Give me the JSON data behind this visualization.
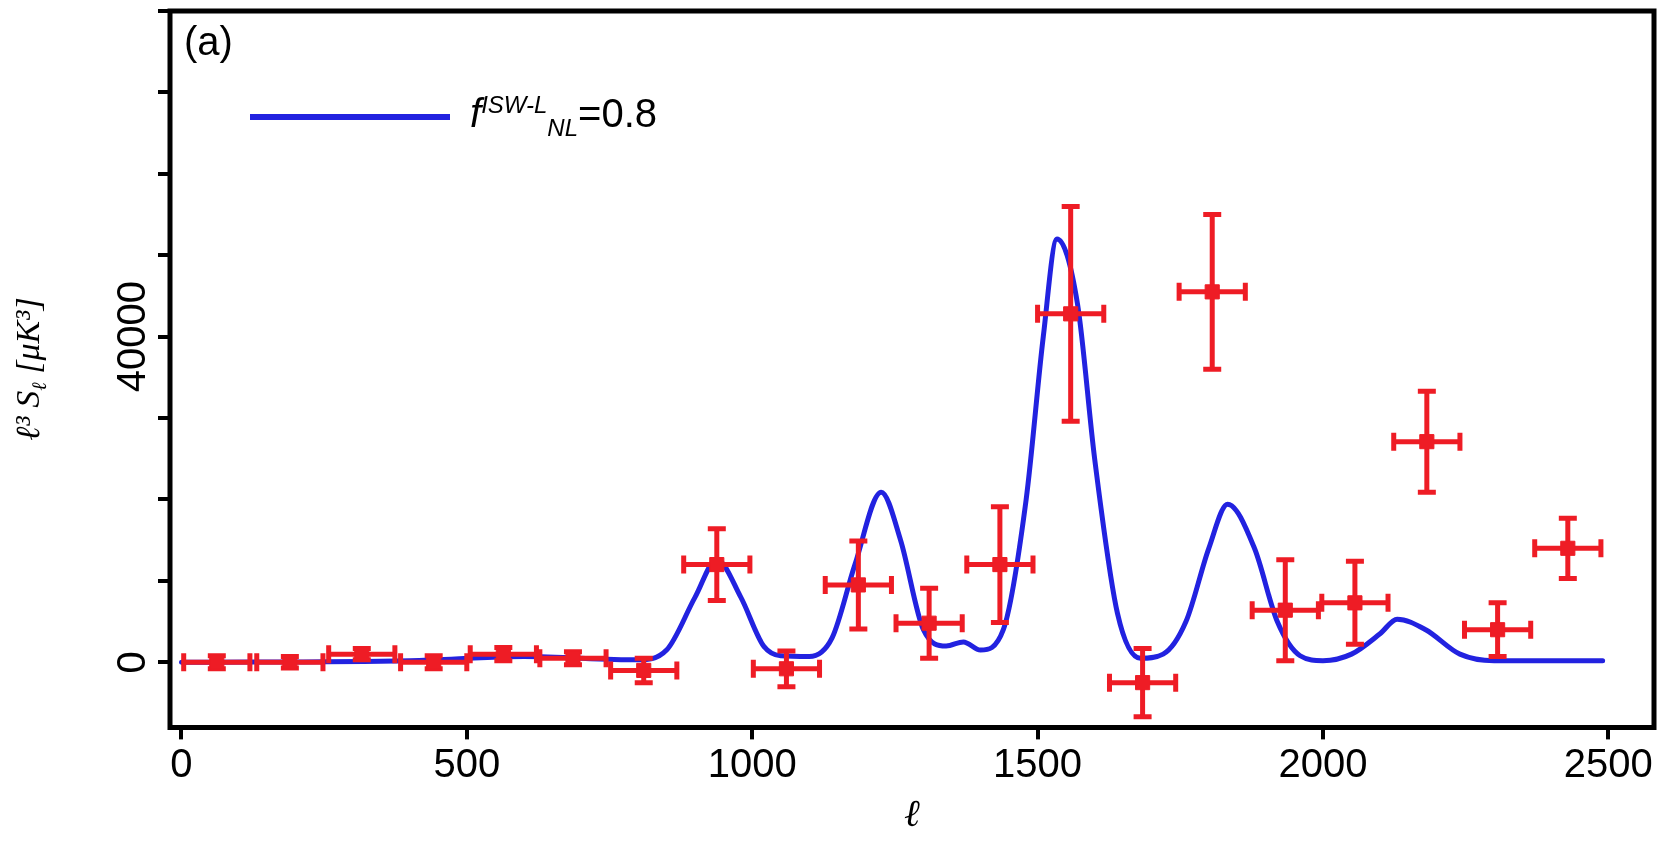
{
  "chart_data": {
    "type": "scatter",
    "xlabel": "ℓ",
    "ylabel": "ℓ³ S$_{ℓ}$ [μK³]",
    "annotations": [
      "(a)"
    ],
    "xlim": [
      -20,
      2580
    ],
    "xticks": [
      0,
      500,
      1000,
      1500,
      2000,
      2500
    ],
    "ylim": [
      -8000,
      80000
    ],
    "yticks": [
      0,
      {
        "value": 10000,
        "label": null
      },
      {
        "value": 20000,
        "label": null
      },
      {
        "value": 30000,
        "label": null
      },
      40000,
      {
        "value": 50000,
        "label": null
      },
      {
        "value": 60000,
        "label": null
      },
      {
        "value": 70000,
        "label": null
      },
      {
        "value": 80000,
        "label": null
      }
    ],
    "grid": false,
    "legend": "top left",
    "marker": "square",
    "series": [
      {
        "type": "line",
        "name": "f$^{ISW-L}$$_{NL}$=0.8",
        "color": "#2222e0",
        "line_style": "solid",
        "marker": "none",
        "x": [
          0,
          400,
          600,
          800,
          850,
          900,
          938,
          980,
          1020,
          1050,
          1100,
          1140,
          1180,
          1226,
          1260,
          1300,
          1340,
          1370,
          1400,
          1440,
          1480,
          1510,
          1534,
          1570,
          1600,
          1640,
          1680,
          1720,
          1760,
          1800,
          1833,
          1880,
          1920,
          1960,
          2000,
          2050,
          2100,
          2130,
          2180,
          2240,
          2300,
          2490
        ],
        "values": [
          0,
          200,
          700,
          300,
          1500,
          8000,
          12600,
          8000,
          2000,
          800,
          700,
          3000,
          12000,
          20900,
          15000,
          4000,
          2000,
          2500,
          1500,
          4000,
          20000,
          40000,
          52000,
          44000,
          25000,
          6000,
          500,
          1000,
          5000,
          14000,
          19400,
          14000,
          5000,
          800,
          200,
          1000,
          3500,
          5300,
          4000,
          1000,
          200,
          200
        ]
      },
      {
        "color": "#ee1c25",
        "x": [
          62,
          190,
          316,
          442,
          564,
          686,
          810,
          938,
          1060,
          1186,
          1310,
          1434,
          1558,
          1684,
          1806,
          1934,
          2056,
          2182,
          2306,
          2429
        ],
        "values": [
          0,
          0,
          1000,
          0,
          1000,
          500,
          -1000,
          12000,
          -800,
          9500,
          4800,
          12000,
          42800,
          -2500,
          45500,
          6400,
          7300,
          27100,
          4000,
          14000
        ],
        "errors": [
          800,
          700,
          700,
          800,
          800,
          800,
          1500,
          4400,
          2200,
          5400,
          4300,
          7100,
          13200,
          4200,
          9500,
          6200,
          5100,
          6200,
          3300,
          3700
        ],
        "xerrors": [
          58,
          58,
          58,
          58,
          58,
          58,
          58,
          58,
          58,
          58,
          58,
          58,
          58,
          58,
          58,
          58,
          58,
          58,
          58,
          58
        ]
      }
    ]
  }
}
